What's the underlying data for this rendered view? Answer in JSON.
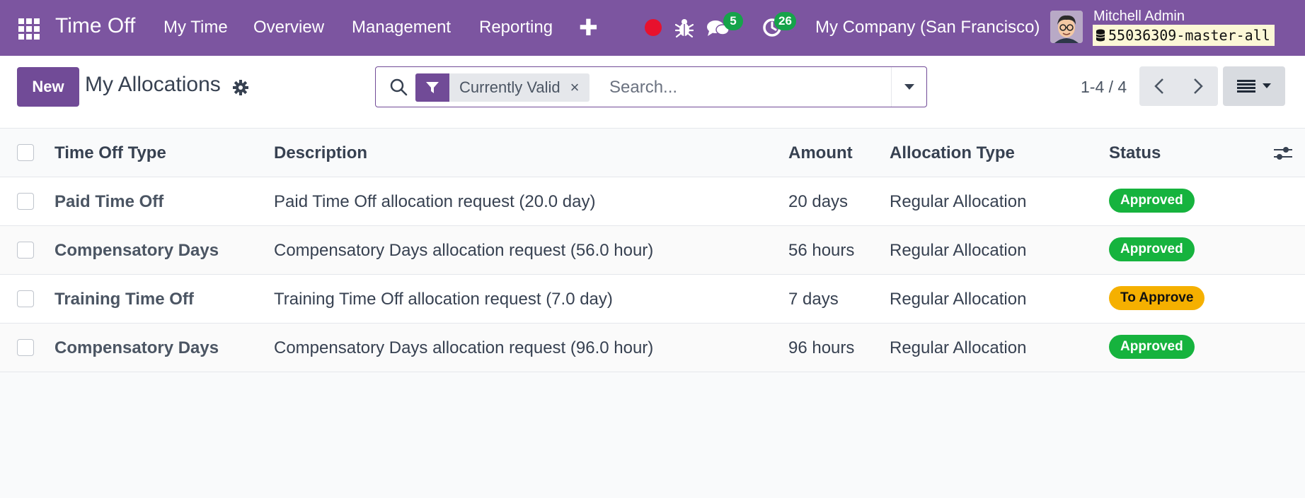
{
  "navbar": {
    "app_name": "Time Off",
    "menu": [
      "My Time",
      "Overview",
      "Management",
      "Reporting"
    ],
    "chat_count": "5",
    "activity_count": "26",
    "company": "My Company (San Francisco)",
    "user_name": "Mitchell Admin",
    "database": "55036309-master-all",
    "accent": "#7c55a0"
  },
  "control": {
    "new_label": "New",
    "title": "My Allocations",
    "facet_label": "Currently Valid",
    "search_placeholder": "Search...",
    "pager": "1-4 / 4"
  },
  "table": {
    "columns": [
      "Time Off Type",
      "Description",
      "Amount",
      "Allocation Type",
      "Status"
    ],
    "rows": [
      {
        "type": "Paid Time Off",
        "description": "Paid Time Off allocation request (20.0 day)",
        "amount": "20 days",
        "allocation_type": "Regular Allocation",
        "status": "Approved"
      },
      {
        "type": "Compensatory Days",
        "description": "Compensatory Days allocation request (56.0 hour)",
        "amount": "56 hours",
        "allocation_type": "Regular Allocation",
        "status": "Approved"
      },
      {
        "type": "Training Time Off",
        "description": "Training Time Off allocation request (7.0 day)",
        "amount": "7 days",
        "allocation_type": "Regular Allocation",
        "status": "To Approve"
      },
      {
        "type": "Compensatory Days",
        "description": "Compensatory Days allocation request (96.0 hour)",
        "amount": "96 hours",
        "allocation_type": "Regular Allocation",
        "status": "Approved"
      }
    ]
  }
}
